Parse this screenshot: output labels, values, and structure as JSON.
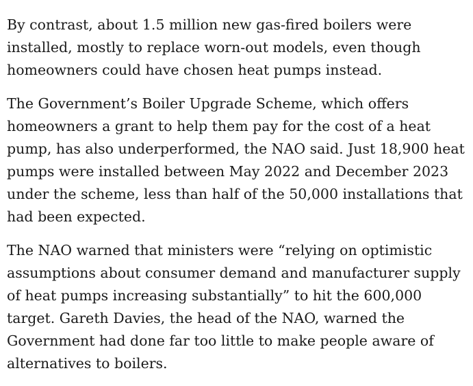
{
  "paragraphs": [
    {
      "lines": [
        "By contrast, about 1.5 million new gas-fired boilers were",
        "installed, mostly to replace worn-out models, even though",
        "homeowners could have chosen heat pumps instead."
      ]
    },
    {
      "lines": [
        "The Government’s Boiler Upgrade Scheme, which offers",
        "homeowners a grant to help them pay for the cost of a heat",
        "pump, has also underperformed, the NAO said. Just 18,900 heat",
        "pumps were installed between May 2022 and December 2023",
        "under the scheme, less than half of the 50,000 installations that",
        "had been expected."
      ]
    },
    {
      "lines": [
        "The NAO warned that ministers were “relying on optimistic",
        "assumptions about consumer demand and manufacturer supply",
        "of heat pumps increasing substantially” to hit the 600,000",
        "target. Gareth Davies, the head of the NAO, warned the",
        "Government had done far too little to make people aware of",
        "alternatives to boilers."
      ]
    }
  ]
}
